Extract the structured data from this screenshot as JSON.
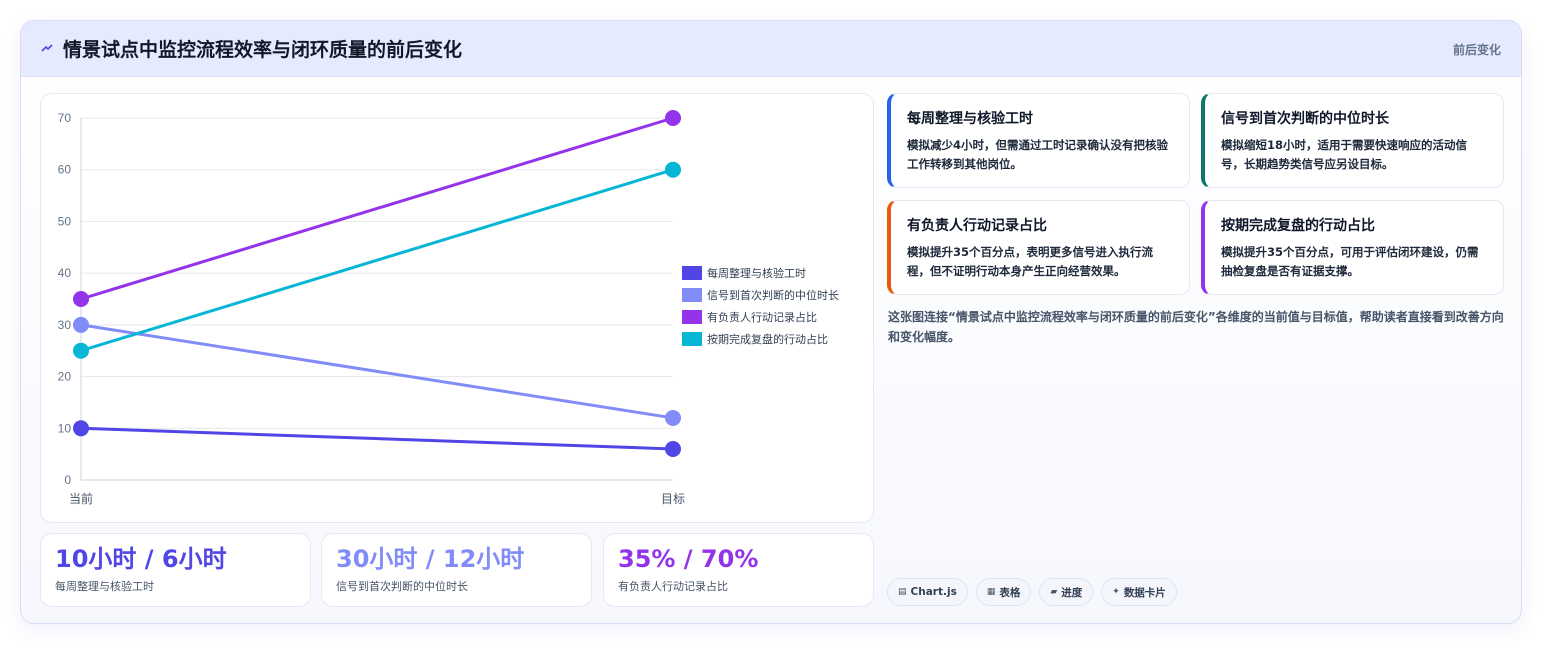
{
  "header": {
    "icon": "trend-line-icon",
    "title": "情景试点中监控流程效率与闭环质量的前后变化",
    "tag": "前后变化"
  },
  "chart_data": {
    "type": "line",
    "categories": [
      "当前",
      "目标"
    ],
    "series": [
      {
        "name": "每周整理与核验工时",
        "values": [
          10,
          6
        ],
        "color": "#4f46e5"
      },
      {
        "name": "信号到首次判断的中位时长",
        "values": [
          30,
          12
        ],
        "color": "#818cf8"
      },
      {
        "name": "有负责人行动记录占比",
        "values": [
          35,
          70
        ],
        "color": "#9333ea"
      },
      {
        "name": "按期完成复盘的行动占比",
        "values": [
          25,
          60
        ],
        "color": "#06b6d4"
      }
    ],
    "ylim": [
      0,
      70
    ],
    "yticks": [
      0,
      10,
      20,
      30,
      40,
      50,
      60,
      70
    ],
    "grid": true,
    "legend": "right"
  },
  "stats": [
    {
      "value": "10小时 / 6小时",
      "label": "每周整理与核验工时",
      "color": "#4f46e5"
    },
    {
      "value": "30小时 / 12小时",
      "label": "信号到首次判断的中位时长",
      "color": "#818cf8"
    },
    {
      "value": "35% / 70%",
      "label": "有负责人行动记录占比",
      "color": "#9333ea"
    }
  ],
  "cards": [
    {
      "title": "每周整理与核验工时",
      "body": "模拟减少4小时，但需通过工时记录确认没有把核验工作转移到其他岗位。",
      "accent": "#2563eb"
    },
    {
      "title": "信号到首次判断的中位时长",
      "body": "模拟缩短18小时，适用于需要快速响应的活动信号，长期趋势类信号应另设目标。",
      "accent": "#0f766e"
    },
    {
      "title": "有负责人行动记录占比",
      "body": "模拟提升35个百分点，表明更多信号进入执行流程，但不证明行动本身产生正向经营效果。",
      "accent": "#ea580c"
    },
    {
      "title": "按期完成复盘的行动占比",
      "body": "模拟提升35个百分点，可用于评估闭环建设，仍需抽检复盘是否有证据支撑。",
      "accent": "#9333ea"
    }
  ],
  "caption": "这张图连接“情景试点中监控流程效率与闭环质量的前后变化”各维度的当前值与目标值，帮助读者直接看到改善方向和变化幅度。",
  "chips": [
    {
      "icon": "chart-icon",
      "glyph": "▤",
      "label": "Chart.js"
    },
    {
      "icon": "table-icon",
      "glyph": "▦",
      "label": "表格"
    },
    {
      "icon": "progress-icon",
      "glyph": "▰",
      "label": "进度"
    },
    {
      "icon": "sparkle-icon",
      "glyph": "✦",
      "label": "数据卡片"
    }
  ]
}
